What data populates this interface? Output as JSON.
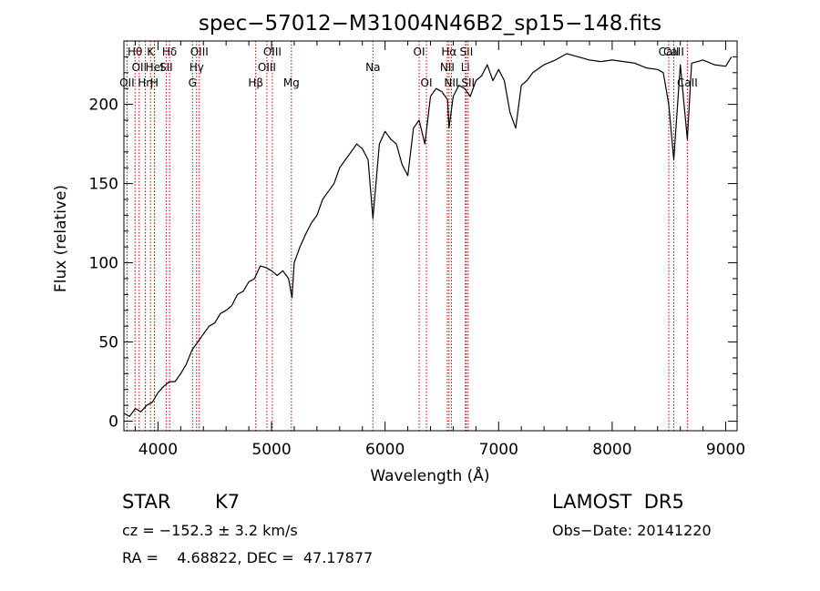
{
  "chart_data": {
    "type": "line",
    "title": "spec−57012−M31004N46B2_sp15−148.fits",
    "xlabel": "Wavelength (Å)",
    "ylabel": "Flux (relative)",
    "xlim": [
      3700,
      9100
    ],
    "ylim": [
      -6,
      240
    ],
    "xticks": [
      4000,
      5000,
      6000,
      7000,
      8000,
      9000
    ],
    "yticks": [
      0,
      50,
      100,
      150,
      200
    ],
    "grid": false,
    "spectrum": {
      "x": [
        3700,
        3750,
        3800,
        3850,
        3900,
        3950,
        4000,
        4050,
        4100,
        4150,
        4200,
        4250,
        4300,
        4350,
        4400,
        4450,
        4500,
        4550,
        4600,
        4650,
        4700,
        4750,
        4800,
        4850,
        4900,
        4950,
        5000,
        5050,
        5100,
        5150,
        5180,
        5200,
        5250,
        5300,
        5350,
        5400,
        5450,
        5500,
        5550,
        5600,
        5650,
        5700,
        5750,
        5800,
        5850,
        5893,
        5950,
        6000,
        6050,
        6100,
        6150,
        6200,
        6250,
        6300,
        6350,
        6400,
        6450,
        6500,
        6550,
        6563,
        6600,
        6650,
        6700,
        6750,
        6800,
        6850,
        6900,
        6950,
        7000,
        7050,
        7100,
        7150,
        7200,
        7250,
        7300,
        7400,
        7500,
        7600,
        7700,
        7800,
        7900,
        8000,
        8100,
        8200,
        8300,
        8400,
        8450,
        8498,
        8542,
        8600,
        8662,
        8700,
        8800,
        8900,
        9000,
        9050
      ],
      "y": [
        5,
        3,
        8,
        6,
        10,
        12,
        18,
        22,
        25,
        25,
        30,
        36,
        45,
        50,
        55,
        60,
        62,
        68,
        70,
        73,
        80,
        82,
        88,
        90,
        98,
        97,
        95,
        92,
        95,
        90,
        78,
        100,
        110,
        118,
        125,
        130,
        140,
        145,
        150,
        160,
        165,
        170,
        175,
        172,
        165,
        128,
        175,
        183,
        178,
        175,
        162,
        155,
        185,
        190,
        175,
        205,
        210,
        208,
        203,
        185,
        205,
        212,
        210,
        205,
        215,
        218,
        225,
        215,
        222,
        215,
        195,
        185,
        212,
        215,
        220,
        225,
        228,
        232,
        230,
        228,
        227,
        228,
        227,
        226,
        223,
        222,
        220,
        200,
        165,
        225,
        178,
        226,
        228,
        225,
        224,
        230
      ]
    },
    "lines": [
      {
        "x": 3798,
        "label": "Hθ",
        "row": 0
      },
      {
        "x": 3835,
        "label": "OII",
        "row": 1
      },
      {
        "x": 3727,
        "label": "OII",
        "row": 2
      },
      {
        "x": 3889,
        "label": "Hη",
        "row": 2
      },
      {
        "x": 3934,
        "label": "K",
        "row": 0
      },
      {
        "x": 3970,
        "label": "HeI",
        "row": 1
      },
      {
        "x": 3968,
        "label": "H",
        "row": 2
      },
      {
        "x": 4102,
        "label": "Hδ",
        "row": 0
      },
      {
        "x": 4072,
        "label": "SII",
        "row": 1
      },
      {
        "x": 4304,
        "label": "G",
        "row": 2
      },
      {
        "x": 4340,
        "label": "Hγ",
        "row": 1
      },
      {
        "x": 4364,
        "label": "OIII",
        "row": 0
      },
      {
        "x": 4861,
        "label": "Hβ",
        "row": 2
      },
      {
        "x": 4959,
        "label": "OIII",
        "row": 1
      },
      {
        "x": 5007,
        "label": "OIII",
        "row": 0
      },
      {
        "x": 5175,
        "label": "Mg",
        "row": 2
      },
      {
        "x": 5893,
        "label": "Na",
        "row": 1
      },
      {
        "x": 6300,
        "label": "OI",
        "row": 0
      },
      {
        "x": 6364,
        "label": "OI",
        "row": 2
      },
      {
        "x": 6548,
        "label": "NII",
        "row": 1
      },
      {
        "x": 6563,
        "label": "Hα",
        "row": 0
      },
      {
        "x": 6584,
        "label": "NII",
        "row": 2
      },
      {
        "x": 6707,
        "label": "Li",
        "row": 1
      },
      {
        "x": 6716,
        "label": "SII",
        "row": 0
      },
      {
        "x": 6731,
        "label": "SII",
        "row": 2
      },
      {
        "x": 8498,
        "label": "CaII",
        "row": 0
      },
      {
        "x": 8542,
        "label": "CaII",
        "row": 0
      },
      {
        "x": 8662,
        "label": "CaII",
        "row": 2
      }
    ]
  },
  "info": {
    "class_label": "STAR",
    "subclass": "K7",
    "survey": "LAMOST  DR5",
    "cz_text": "cz = −152.3 ± 3.2 km/s",
    "obs_date": "Obs−Date: 20141220",
    "coords": "RA =    4.68822, DEC =  47.17877"
  }
}
